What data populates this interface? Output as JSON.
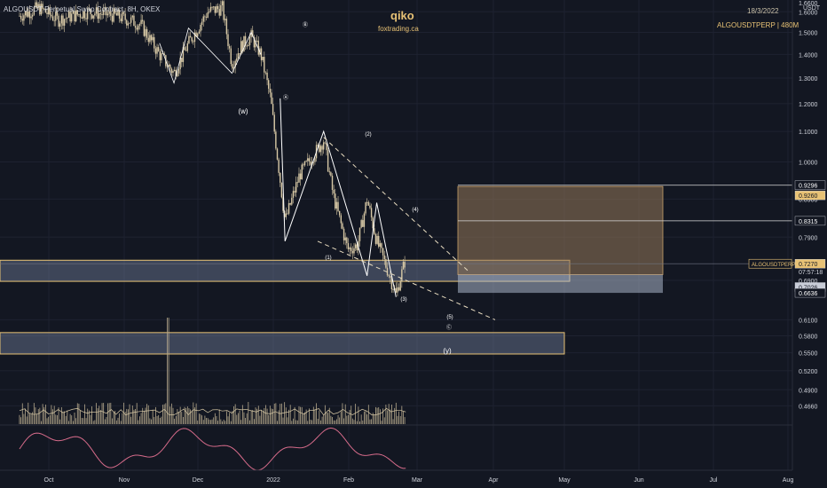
{
  "header": {
    "title": "ALGOUSDT Perpetual Swap Contract, 8H, OKEX",
    "watermark_name": "qiko",
    "watermark_site": "foxtrading.ca",
    "date": "18/3/2022",
    "symbol_tf": "ALGOUSDTPERP | 480M",
    "unit": "USDT"
  },
  "colors": {
    "background": "#131722",
    "candle": "#d8c9a6",
    "grid": "#1e2230",
    "box_border": "#e8c275",
    "text": "#d1d4dc"
  },
  "chart_data": {
    "type": "candlestick",
    "ylim_log": [
      0.44,
      1.66
    ],
    "price_ticks": [
      1.6,
      1.5,
      1.4,
      1.3,
      1.2,
      1.1,
      1.0,
      0.89,
      0.79,
      0.69,
      0.61,
      0.58,
      0.55,
      0.52,
      0.49,
      0.466
    ],
    "price_tick_labels": [
      "1.6000",
      "1.5000",
      "1.4000",
      "1.3000",
      "1.2000",
      "1.1000",
      "1.0000",
      "0.8900",
      "0.7900",
      "0.6900",
      "0.6100",
      "0.5800",
      "0.5500",
      "0.5200",
      "0.4900",
      "0.4660"
    ],
    "top_tick_label": "1.6600",
    "x_labels": [
      "Oct",
      "Nov",
      "Dec",
      "2022",
      "Feb",
      "Mar",
      "Apr",
      "May",
      "Jun",
      "Jul",
      "Aug"
    ],
    "price_path": [
      {
        "d": 0,
        "p": 1.58
      },
      {
        "d": 8,
        "p": 1.62
      },
      {
        "d": 16,
        "p": 1.56
      },
      {
        "d": 28,
        "p": 1.6
      },
      {
        "d": 40,
        "p": 1.58
      },
      {
        "d": 50,
        "p": 1.54
      },
      {
        "d": 58,
        "p": 1.4
      },
      {
        "d": 64,
        "p": 1.32
      },
      {
        "d": 70,
        "p": 1.45
      },
      {
        "d": 78,
        "p": 1.6
      },
      {
        "d": 84,
        "p": 1.62
      },
      {
        "d": 88,
        "p": 1.36
      },
      {
        "d": 92,
        "p": 1.44
      },
      {
        "d": 96,
        "p": 1.48
      },
      {
        "d": 100,
        "p": 1.4
      },
      {
        "d": 104,
        "p": 1.22
      },
      {
        "d": 110,
        "p": 0.83
      },
      {
        "d": 116,
        "p": 0.96
      },
      {
        "d": 126,
        "p": 1.07
      },
      {
        "d": 130,
        "p": 0.9
      },
      {
        "d": 136,
        "p": 0.76
      },
      {
        "d": 140,
        "p": 0.77
      },
      {
        "d": 144,
        "p": 0.89
      },
      {
        "d": 148,
        "p": 0.78
      },
      {
        "d": 152,
        "p": 0.72
      },
      {
        "d": 156,
        "p": 0.66
      },
      {
        "d": 160,
        "p": 0.74
      }
    ],
    "current_price_label": "0.7270",
    "countdown": "07:57:18",
    "symbol_tag": "ALGOUSDTPERP",
    "price_tags": [
      "0.9296",
      "0.9260",
      "0.8315",
      "0.7026",
      "0.6636"
    ],
    "wave_labels": [
      "(w)",
      "Ⓐ",
      "Ⓑ",
      "(1)",
      "(2)",
      "(3)",
      "(4)",
      "(5)",
      "Ⓒ",
      "(y)"
    ],
    "volume": {
      "spike_label": "volume-spike"
    },
    "rsi_ticks": [
      "40.0000",
      "20.0000"
    ]
  }
}
